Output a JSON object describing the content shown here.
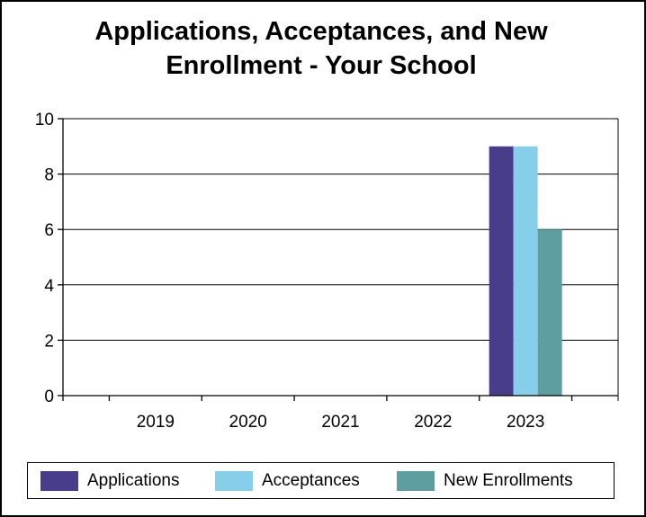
{
  "chart_data": {
    "type": "bar",
    "title_lines": [
      "Applications, Acceptances, and New",
      "Enrollment - Your School"
    ],
    "categories": [
      "2019",
      "2020",
      "2021",
      "2022",
      "2023"
    ],
    "series": [
      {
        "name": "Applications",
        "color": "#483D8B",
        "values": [
          0,
          0,
          0,
          0,
          9
        ]
      },
      {
        "name": "Acceptances",
        "color": "#87CEEB",
        "values": [
          0,
          0,
          0,
          0,
          9
        ]
      },
      {
        "name": "New Enrollments",
        "color": "#5F9EA0",
        "values": [
          0,
          0,
          0,
          0,
          6
        ]
      }
    ],
    "ylim": [
      0,
      10
    ],
    "yticks": [
      0,
      2,
      4,
      6,
      8,
      10
    ],
    "grid": true,
    "legend_position": "bottom"
  }
}
